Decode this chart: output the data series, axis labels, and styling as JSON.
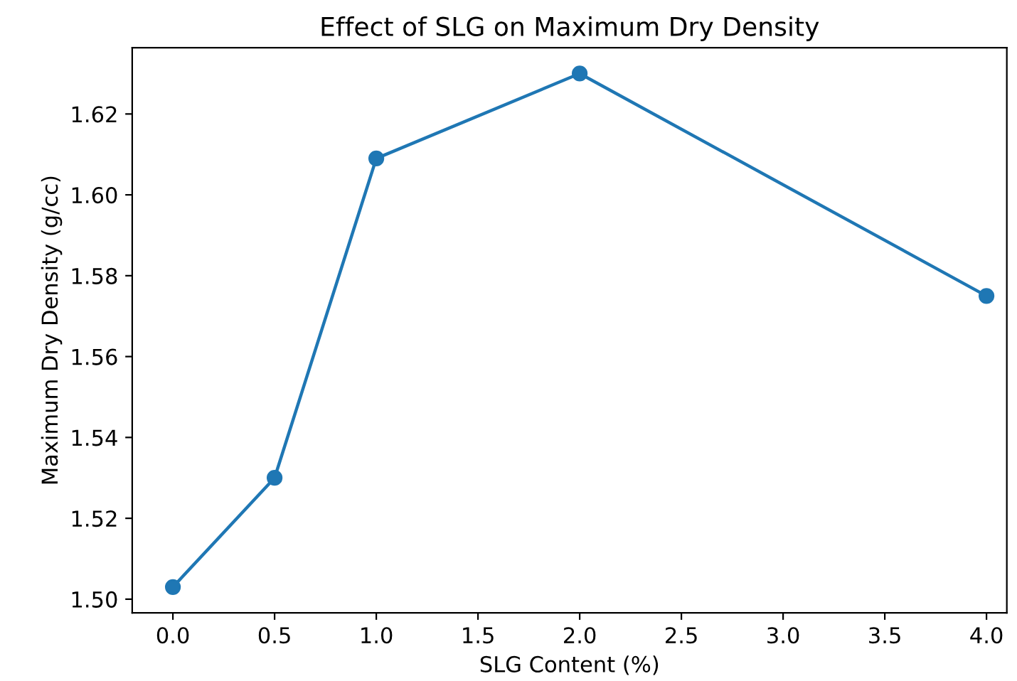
{
  "chart_data": {
    "type": "line",
    "title": "Effect of SLG on Maximum Dry Density",
    "xlabel": "SLG Content (%)",
    "ylabel": "Maximum Dry Density (g/cc)",
    "x": [
      0,
      0.5,
      1,
      2,
      4
    ],
    "series": [
      {
        "color": "#1f77b4",
        "values": [
          1.503,
          1.53,
          1.609,
          1.63,
          1.575
        ]
      }
    ],
    "marker": "circle",
    "line_style": "solid",
    "grid": false,
    "legend": false,
    "xlim": [
      -0.2,
      4.1
    ],
    "ylim": [
      1.4966,
      1.6364
    ],
    "xticks": [
      {
        "value": 0,
        "label": "0.0"
      },
      {
        "value": 0.5,
        "label": "0.5"
      },
      {
        "value": 1,
        "label": "1.0"
      },
      {
        "value": 1.5,
        "label": "1.5"
      },
      {
        "value": 2,
        "label": "2.0"
      },
      {
        "value": 2.5,
        "label": "2.5"
      },
      {
        "value": 3,
        "label": "3.0"
      },
      {
        "value": 3.5,
        "label": "3.5"
      },
      {
        "value": 4,
        "label": "4.0"
      }
    ],
    "yticks": [
      {
        "value": 1.5,
        "label": "1.50"
      },
      {
        "value": 1.52,
        "label": "1.52"
      },
      {
        "value": 1.54,
        "label": "1.54"
      },
      {
        "value": 1.56,
        "label": "1.56"
      },
      {
        "value": 1.58,
        "label": "1.58"
      },
      {
        "value": 1.6,
        "label": "1.60"
      },
      {
        "value": 1.62,
        "label": "1.62"
      }
    ]
  }
}
